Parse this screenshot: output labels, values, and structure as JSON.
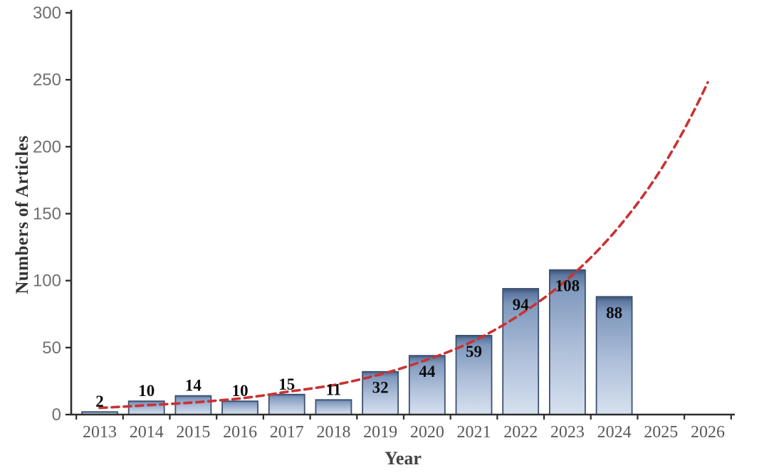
{
  "chart_data": {
    "type": "bar",
    "title": "",
    "xlabel": "Year",
    "ylabel": "Numbers of Articles",
    "categories": [
      "2013",
      "2014",
      "2015",
      "2016",
      "2017",
      "2018",
      "2019",
      "2020",
      "2021",
      "2022",
      "2023",
      "2024",
      "2025",
      "2026"
    ],
    "values": [
      2,
      10,
      14,
      10,
      15,
      11,
      32,
      44,
      59,
      94,
      108,
      88,
      null,
      null
    ],
    "bar_labels": [
      "2",
      "10",
      "14",
      "10",
      "15",
      "11",
      "32",
      "44",
      "59",
      "94",
      "108",
      "88"
    ],
    "yticks": [
      0,
      50,
      100,
      150,
      200,
      250,
      300
    ],
    "ylim": [
      0,
      300
    ],
    "grid": false,
    "legend": "none",
    "trend": {
      "name": "exponential-trend",
      "style": "dashed",
      "color": "#ca3232",
      "values": [
        5,
        7,
        9,
        12,
        17,
        22,
        30,
        41,
        55,
        75,
        101,
        136,
        183,
        248
      ]
    },
    "colors": {
      "bar_top": "#3d5478",
      "bar_upper": "#5f79a2",
      "bar_mid": "#8099bd",
      "bar_lower": "#aebfd9",
      "bar_bottom": "#d7e1f0",
      "bar_border": "#3c5170",
      "axis": "#2e2e2e",
      "ytick_label": "#6f6f6f",
      "xtick_label": "#5a5a5a",
      "data_label": "#0d0d0d"
    }
  }
}
